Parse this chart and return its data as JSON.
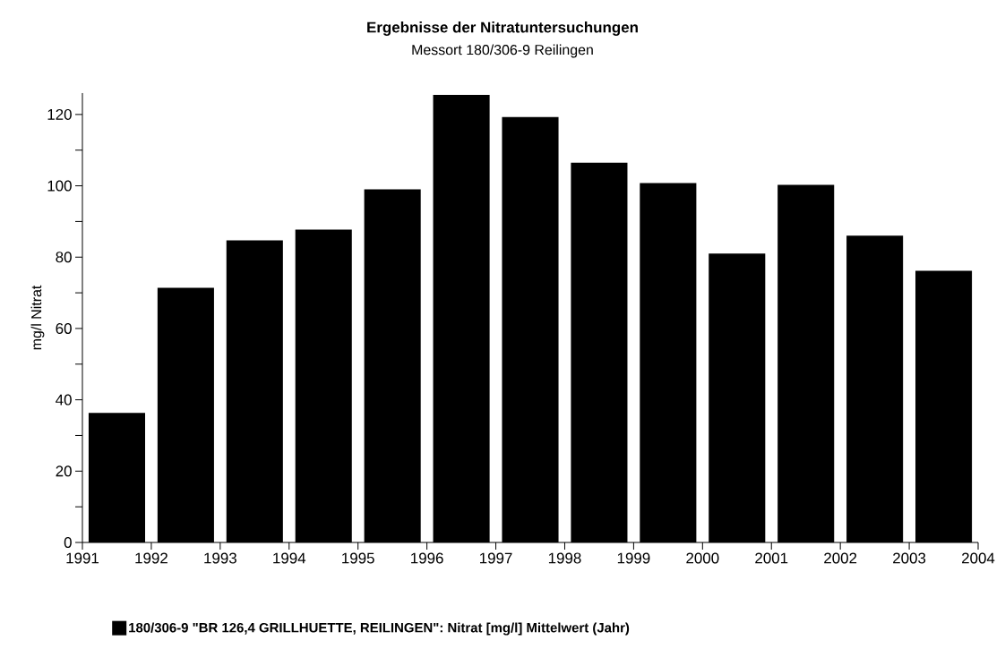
{
  "chart_data": {
    "type": "bar",
    "title": "Ergebnisse der Nitratuntersuchungen",
    "subtitle": "Messort 180/306-9 Reilingen",
    "ylabel": "mg/l Nitrat",
    "x": [
      1991.5,
      1992.5,
      1993.5,
      1994.5,
      1995.5,
      1996.5,
      1997.5,
      1998.5,
      1999.5,
      2000.5,
      2001.5,
      2002.5,
      2003.5
    ],
    "series": [
      {
        "name": "180/306-9 \"BR 126,4 GRILLHUETTE, REILINGEN\": Nitrat [mg/l] Mittelwert (Jahr)",
        "color": "#000000",
        "values": [
          36.3,
          71.4,
          84.7,
          87.7,
          99,
          125.5,
          119.3,
          106.5,
          100.8,
          81,
          100.3,
          86,
          76.2
        ]
      }
    ],
    "xlim": [
      1991,
      2004
    ],
    "xticks": [
      1991,
      1992,
      1993,
      1994,
      1995,
      1996,
      1997,
      1998,
      1999,
      2000,
      2001,
      2002,
      2003,
      2004
    ],
    "ylim": [
      0,
      126
    ],
    "yticks": [
      0,
      {
        "value": 10,
        "label": null
      },
      20,
      {
        "value": 30,
        "label": null
      },
      40,
      {
        "value": 50,
        "label": null
      },
      60,
      {
        "value": 70,
        "label": null
      },
      80,
      {
        "value": 90,
        "label": null
      },
      100,
      {
        "value": 110,
        "label": null
      },
      120
    ],
    "grid": false,
    "legend": "bottom"
  }
}
